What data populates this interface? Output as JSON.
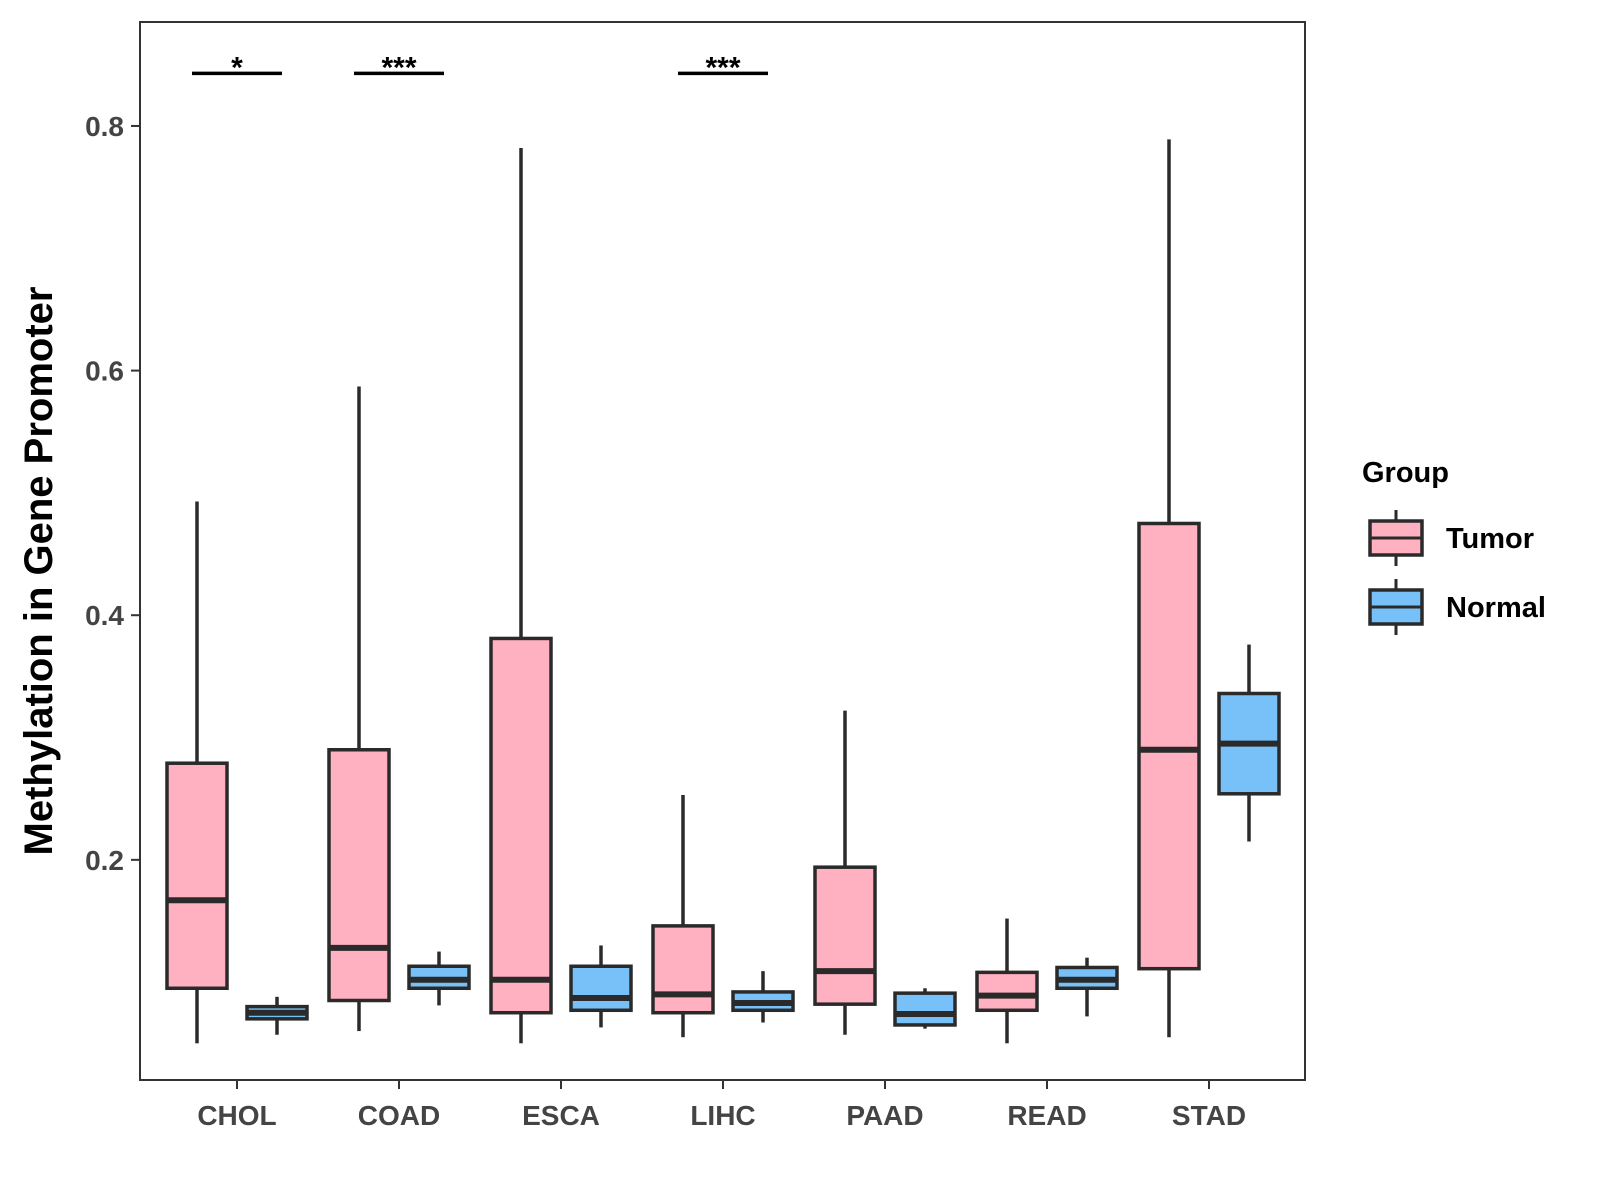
{
  "chart_data": {
    "type": "boxplot",
    "title": "",
    "xlabel": "",
    "ylabel": "Methylation in Gene Promoter",
    "ylim": [
      0.02,
      0.885
    ],
    "yticks": [
      0.2,
      0.4,
      0.6,
      0.8
    ],
    "ytick_labels": [
      "0.2",
      "0.4",
      "0.6",
      "0.8"
    ],
    "categories": [
      "CHOL",
      "COAD",
      "ESCA",
      "LIHC",
      "PAAD",
      "READ",
      "STAD"
    ],
    "legend_title": "Group",
    "legend_position": "right",
    "grid": false,
    "series": [
      {
        "name": "Tumor",
        "color": "#FFB0C1",
        "boxes": [
          {
            "min": 0.05,
            "q1": 0.095,
            "median": 0.167,
            "q3": 0.279,
            "max": 0.493
          },
          {
            "min": 0.06,
            "q1": 0.085,
            "median": 0.128,
            "q3": 0.29,
            "max": 0.587
          },
          {
            "min": 0.05,
            "q1": 0.075,
            "median": 0.102,
            "q3": 0.381,
            "max": 0.782
          },
          {
            "min": 0.055,
            "q1": 0.075,
            "median": 0.09,
            "q3": 0.146,
            "max": 0.253
          },
          {
            "min": 0.057,
            "q1": 0.082,
            "median": 0.109,
            "q3": 0.194,
            "max": 0.322
          },
          {
            "min": 0.05,
            "q1": 0.077,
            "median": 0.089,
            "q3": 0.108,
            "max": 0.152
          },
          {
            "min": 0.055,
            "q1": 0.111,
            "median": 0.29,
            "q3": 0.475,
            "max": 0.789
          }
        ]
      },
      {
        "name": "Normal",
        "color": "#77C1F8",
        "boxes": [
          {
            "min": 0.057,
            "q1": 0.07,
            "median": 0.075,
            "q3": 0.08,
            "max": 0.088
          },
          {
            "min": 0.081,
            "q1": 0.095,
            "median": 0.102,
            "q3": 0.113,
            "max": 0.125
          },
          {
            "min": 0.063,
            "q1": 0.077,
            "median": 0.087,
            "q3": 0.113,
            "max": 0.13
          },
          {
            "min": 0.067,
            "q1": 0.077,
            "median": 0.083,
            "q3": 0.092,
            "max": 0.109
          },
          {
            "min": 0.062,
            "q1": 0.065,
            "median": 0.074,
            "q3": 0.091,
            "max": 0.095
          },
          {
            "min": 0.072,
            "q1": 0.095,
            "median": 0.102,
            "q3": 0.112,
            "max": 0.12
          },
          {
            "min": 0.215,
            "q1": 0.254,
            "median": 0.295,
            "q3": 0.336,
            "max": 0.376
          }
        ]
      }
    ],
    "annotations": [
      {
        "category": "CHOL",
        "label": "*",
        "y": 0.843
      },
      {
        "category": "COAD",
        "label": "***",
        "y": 0.843
      },
      {
        "category": "LIHC",
        "label": "***",
        "y": 0.843
      }
    ]
  }
}
